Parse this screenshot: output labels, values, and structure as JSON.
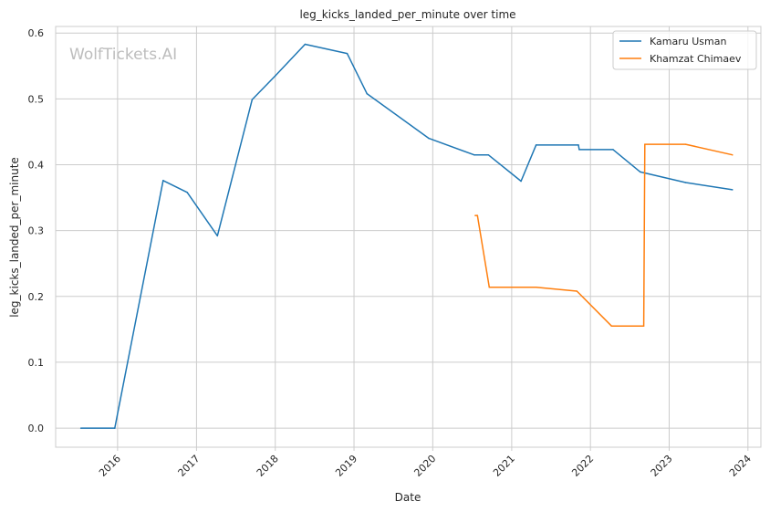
{
  "watermark": "WolfTickets.AI",
  "chart_data": {
    "type": "line",
    "title": "leg_kicks_landed_per_minute over time",
    "xlabel": "Date",
    "ylabel": "leg_kicks_landed_per_minute",
    "x_type": "date",
    "xlim": [
      "2015-03-20",
      "2024-03-01"
    ],
    "ylim": [
      -0.029,
      0.61
    ],
    "x_ticks": [
      "2016",
      "2017",
      "2018",
      "2019",
      "2020",
      "2021",
      "2022",
      "2023",
      "2024"
    ],
    "y_ticks": [
      "0.0",
      "0.1",
      "0.2",
      "0.3",
      "0.4",
      "0.5",
      "0.6"
    ],
    "grid": true,
    "legend_position": "top-right",
    "series": [
      {
        "name": "Kamaru Usman",
        "color": "#1f77b4",
        "points": [
          [
            "2015-07-15",
            0.0
          ],
          [
            "2015-12-19",
            0.0
          ],
          [
            "2016-07-30",
            0.376
          ],
          [
            "2016-11-19",
            0.358
          ],
          [
            "2017-04-08",
            0.292
          ],
          [
            "2017-09-16",
            0.499
          ],
          [
            "2018-01-01",
            0.535
          ],
          [
            "2018-05-19",
            0.583
          ],
          [
            "2018-11-30",
            0.569
          ],
          [
            "2019-03-02",
            0.508
          ],
          [
            "2019-12-14",
            0.44
          ],
          [
            "2020-07-11",
            0.415
          ],
          [
            "2020-09-15",
            0.415
          ],
          [
            "2021-02-13",
            0.375
          ],
          [
            "2021-04-24",
            0.43
          ],
          [
            "2021-11-06",
            0.43
          ],
          [
            "2021-11-10",
            0.423
          ],
          [
            "2022-04-16",
            0.423
          ],
          [
            "2022-08-20",
            0.389
          ],
          [
            "2023-03-18",
            0.373
          ],
          [
            "2023-10-21",
            0.362
          ]
        ]
      },
      {
        "name": "Khamzat Chimaev",
        "color": "#ff7f0e",
        "points": [
          [
            "2020-07-16",
            0.323
          ],
          [
            "2020-07-26",
            0.323
          ],
          [
            "2020-09-19",
            0.214
          ],
          [
            "2021-04-24",
            0.214
          ],
          [
            "2021-10-30",
            0.208
          ],
          [
            "2022-04-09",
            0.155
          ],
          [
            "2022-09-05",
            0.155
          ],
          [
            "2022-09-10",
            0.431
          ],
          [
            "2023-03-18",
            0.431
          ],
          [
            "2023-10-21",
            0.415
          ]
        ]
      }
    ]
  }
}
